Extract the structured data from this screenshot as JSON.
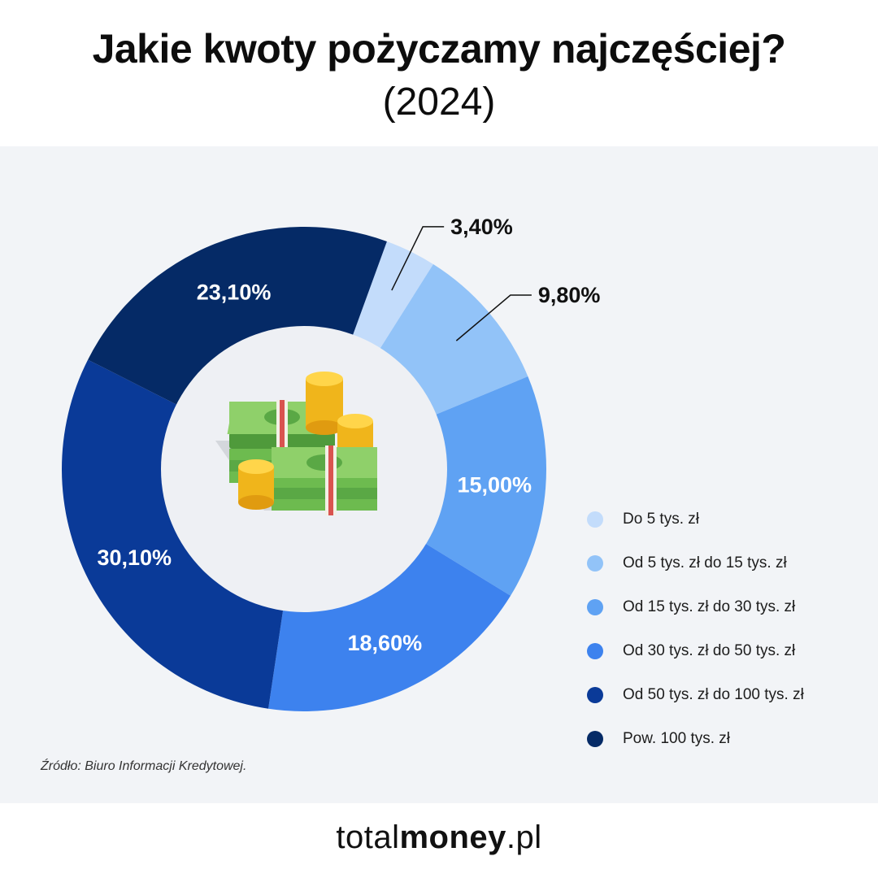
{
  "title": "Jakie kwoty pożyczamy najczęściej?",
  "subtitle": "(2024)",
  "chart_data": {
    "type": "pie",
    "donut": true,
    "categories": [
      "Do 5 tys. zł",
      "Od 5 tys. zł do 15 tys. zł",
      "Od 15 tys. zł do 30 tys. zł",
      "Od 30 tys. zł do 50 tys. zł",
      "Od 50 tys. zł do 100 tys. zł",
      "Pow. 100 tys. zł"
    ],
    "values": [
      3.4,
      9.8,
      15.0,
      18.6,
      30.1,
      23.1
    ],
    "labels": [
      "3,40%",
      "9,80%",
      "15,00%",
      "18,60%",
      "30,10%",
      "23,10%"
    ],
    "colors": [
      "#c3dcfb",
      "#92c3f8",
      "#5fa2f3",
      "#3d82ee",
      "#0a3a98",
      "#052a66"
    ],
    "label_placement": [
      "outside",
      "outside",
      "inside",
      "inside",
      "inside",
      "inside"
    ],
    "legend_position": "right"
  },
  "center_icon": "money-stack-icon",
  "source": "Źródło: Biuro Informacji Kredytowej.",
  "footer": {
    "brand_light": "total",
    "brand_bold": "money",
    "brand_suffix": ".pl"
  }
}
